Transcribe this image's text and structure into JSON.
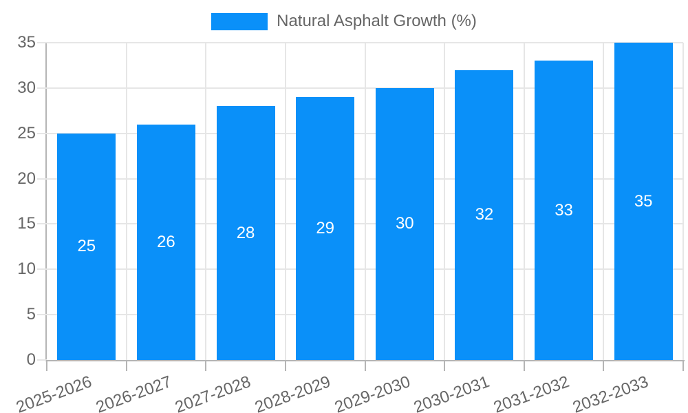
{
  "legend": {
    "label": "Natural Asphalt Growth (%)"
  },
  "colors": {
    "bar": "#0a90f9",
    "grid": "#e6e6e6",
    "axis": "#b5b5b5",
    "tick_text": "#666666",
    "legend_text": "#666666",
    "bar_label_text": "#ffffff",
    "background": "#ffffff"
  },
  "chart_data": {
    "type": "bar",
    "title": "Natural Asphalt Growth (%)",
    "categories": [
      "2025-2026",
      "2026-2027",
      "2027-2028",
      "2028-2029",
      "2029-2030",
      "2030-2031",
      "2031-2032",
      "2032-2033"
    ],
    "series": [
      {
        "name": "Natural Asphalt Growth (%)",
        "values": [
          25,
          26,
          28,
          29,
          30,
          32,
          33,
          35
        ]
      }
    ],
    "values": [
      25,
      26,
      28,
      29,
      30,
      32,
      33,
      35
    ],
    "bar_value_labels": [
      "25",
      "26",
      "28",
      "29",
      "30",
      "32",
      "33",
      "35"
    ],
    "xlabel": "",
    "ylabel": "",
    "ylim": [
      0,
      35
    ],
    "yticks": [
      0,
      5,
      10,
      15,
      20,
      25,
      30,
      35
    ],
    "grid": true,
    "legend_position": "top",
    "x_tick_rotation_deg": -20
  }
}
